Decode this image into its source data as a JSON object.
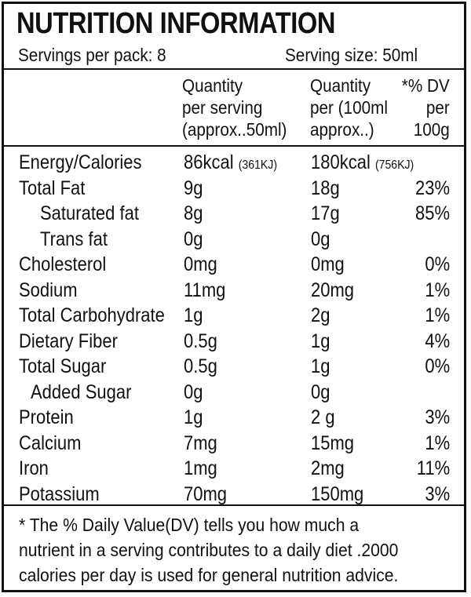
{
  "title": "NUTRITION INFORMATION",
  "servings_per_pack": "Servings per pack: 8",
  "serving_size": "Serving size: 50ml",
  "headers": {
    "per_serving": [
      "Quantity",
      "per serving",
      "(approx..50ml)"
    ],
    "per_100": [
      "Quantity",
      "per (100ml",
      "approx..)"
    ],
    "dv": [
      "*% DV",
      "per",
      "100g"
    ]
  },
  "rows": [
    {
      "name": "Energy/Calories",
      "serving": "86kcal",
      "serving_sub": "(361KJ)",
      "per100": "180kcal",
      "per100_sub": "(756KJ)",
      "dv": ""
    },
    {
      "name": "Total Fat",
      "serving": "9g",
      "per100": "18g",
      "dv": "23%"
    },
    {
      "name": "Saturated fat",
      "serving": "8g",
      "per100": "17g",
      "dv": "85%"
    },
    {
      "name": "Trans fat",
      "serving": "0g",
      "per100": "0g",
      "dv": ""
    },
    {
      "name": "Cholesterol",
      "serving": "0mg",
      "per100": "0mg",
      "dv": "0%"
    },
    {
      "name": "Sodium",
      "serving": "11mg",
      "per100": "20mg",
      "dv": "1%"
    },
    {
      "name": "Total Carbohydrate",
      "serving": "1g",
      "per100": "2g",
      "dv": "1%"
    },
    {
      "name": "Dietary Fiber",
      "serving": "0.5g",
      "per100": "1g",
      "dv": "4%"
    },
    {
      "name": "Total Sugar",
      "serving": "0.5g",
      "per100": "1g",
      "dv": "0%"
    },
    {
      "name": "Added Sugar",
      "serving": "0g",
      "per100": "0g",
      "dv": ""
    },
    {
      "name": "Protein",
      "serving": "1g",
      "per100": "2 g",
      "dv": "3%"
    },
    {
      "name": "Calcium",
      "serving": "7mg",
      "per100": "15mg",
      "dv": "1%"
    },
    {
      "name": "Iron",
      "serving": "1mg",
      "per100": "2mg",
      "dv": "11%"
    },
    {
      "name": "Potassium",
      "serving": "70mg",
      "per100": "150mg",
      "dv": "3%"
    }
  ],
  "footnote": [
    "* The % Daily Value(DV) tells you how much a",
    "nutrient in a serving contributes to a daily diet .2000",
    "calories per day is used for general nutrition advice."
  ]
}
